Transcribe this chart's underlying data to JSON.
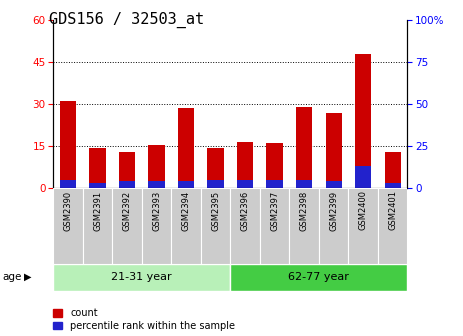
{
  "title": "GDS156 / 32503_at",
  "samples": [
    "GSM2390",
    "GSM2391",
    "GSM2392",
    "GSM2393",
    "GSM2394",
    "GSM2395",
    "GSM2396",
    "GSM2397",
    "GSM2398",
    "GSM2399",
    "GSM2400",
    "GSM2401"
  ],
  "count_values": [
    31,
    14.5,
    13,
    15.5,
    28.5,
    14.5,
    16.5,
    16,
    29,
    27,
    48,
    13
  ],
  "percentile_values": [
    5,
    3,
    4,
    4,
    4,
    5,
    5,
    5,
    5,
    4,
    13,
    3
  ],
  "group1_label": "21-31 year",
  "group1_samples": 6,
  "group2_label": "62-77 year",
  "group2_samples": 6,
  "age_label": "age",
  "legend_count": "count",
  "legend_percentile": "percentile rank within the sample",
  "bar_color_count": "#cc0000",
  "bar_color_percentile": "#2222cc",
  "group1_color": "#b8f0b8",
  "group2_color": "#44cc44",
  "ylim_left": [
    0,
    60
  ],
  "ylim_right": [
    0,
    100
  ],
  "yticks_left": [
    0,
    15,
    30,
    45,
    60
  ],
  "yticks_right": [
    0,
    25,
    50,
    75,
    100
  ],
  "grid_dotted_values": [
    15,
    30,
    45
  ],
  "title_fontsize": 11,
  "tick_fontsize": 7.5,
  "bar_width": 0.55
}
